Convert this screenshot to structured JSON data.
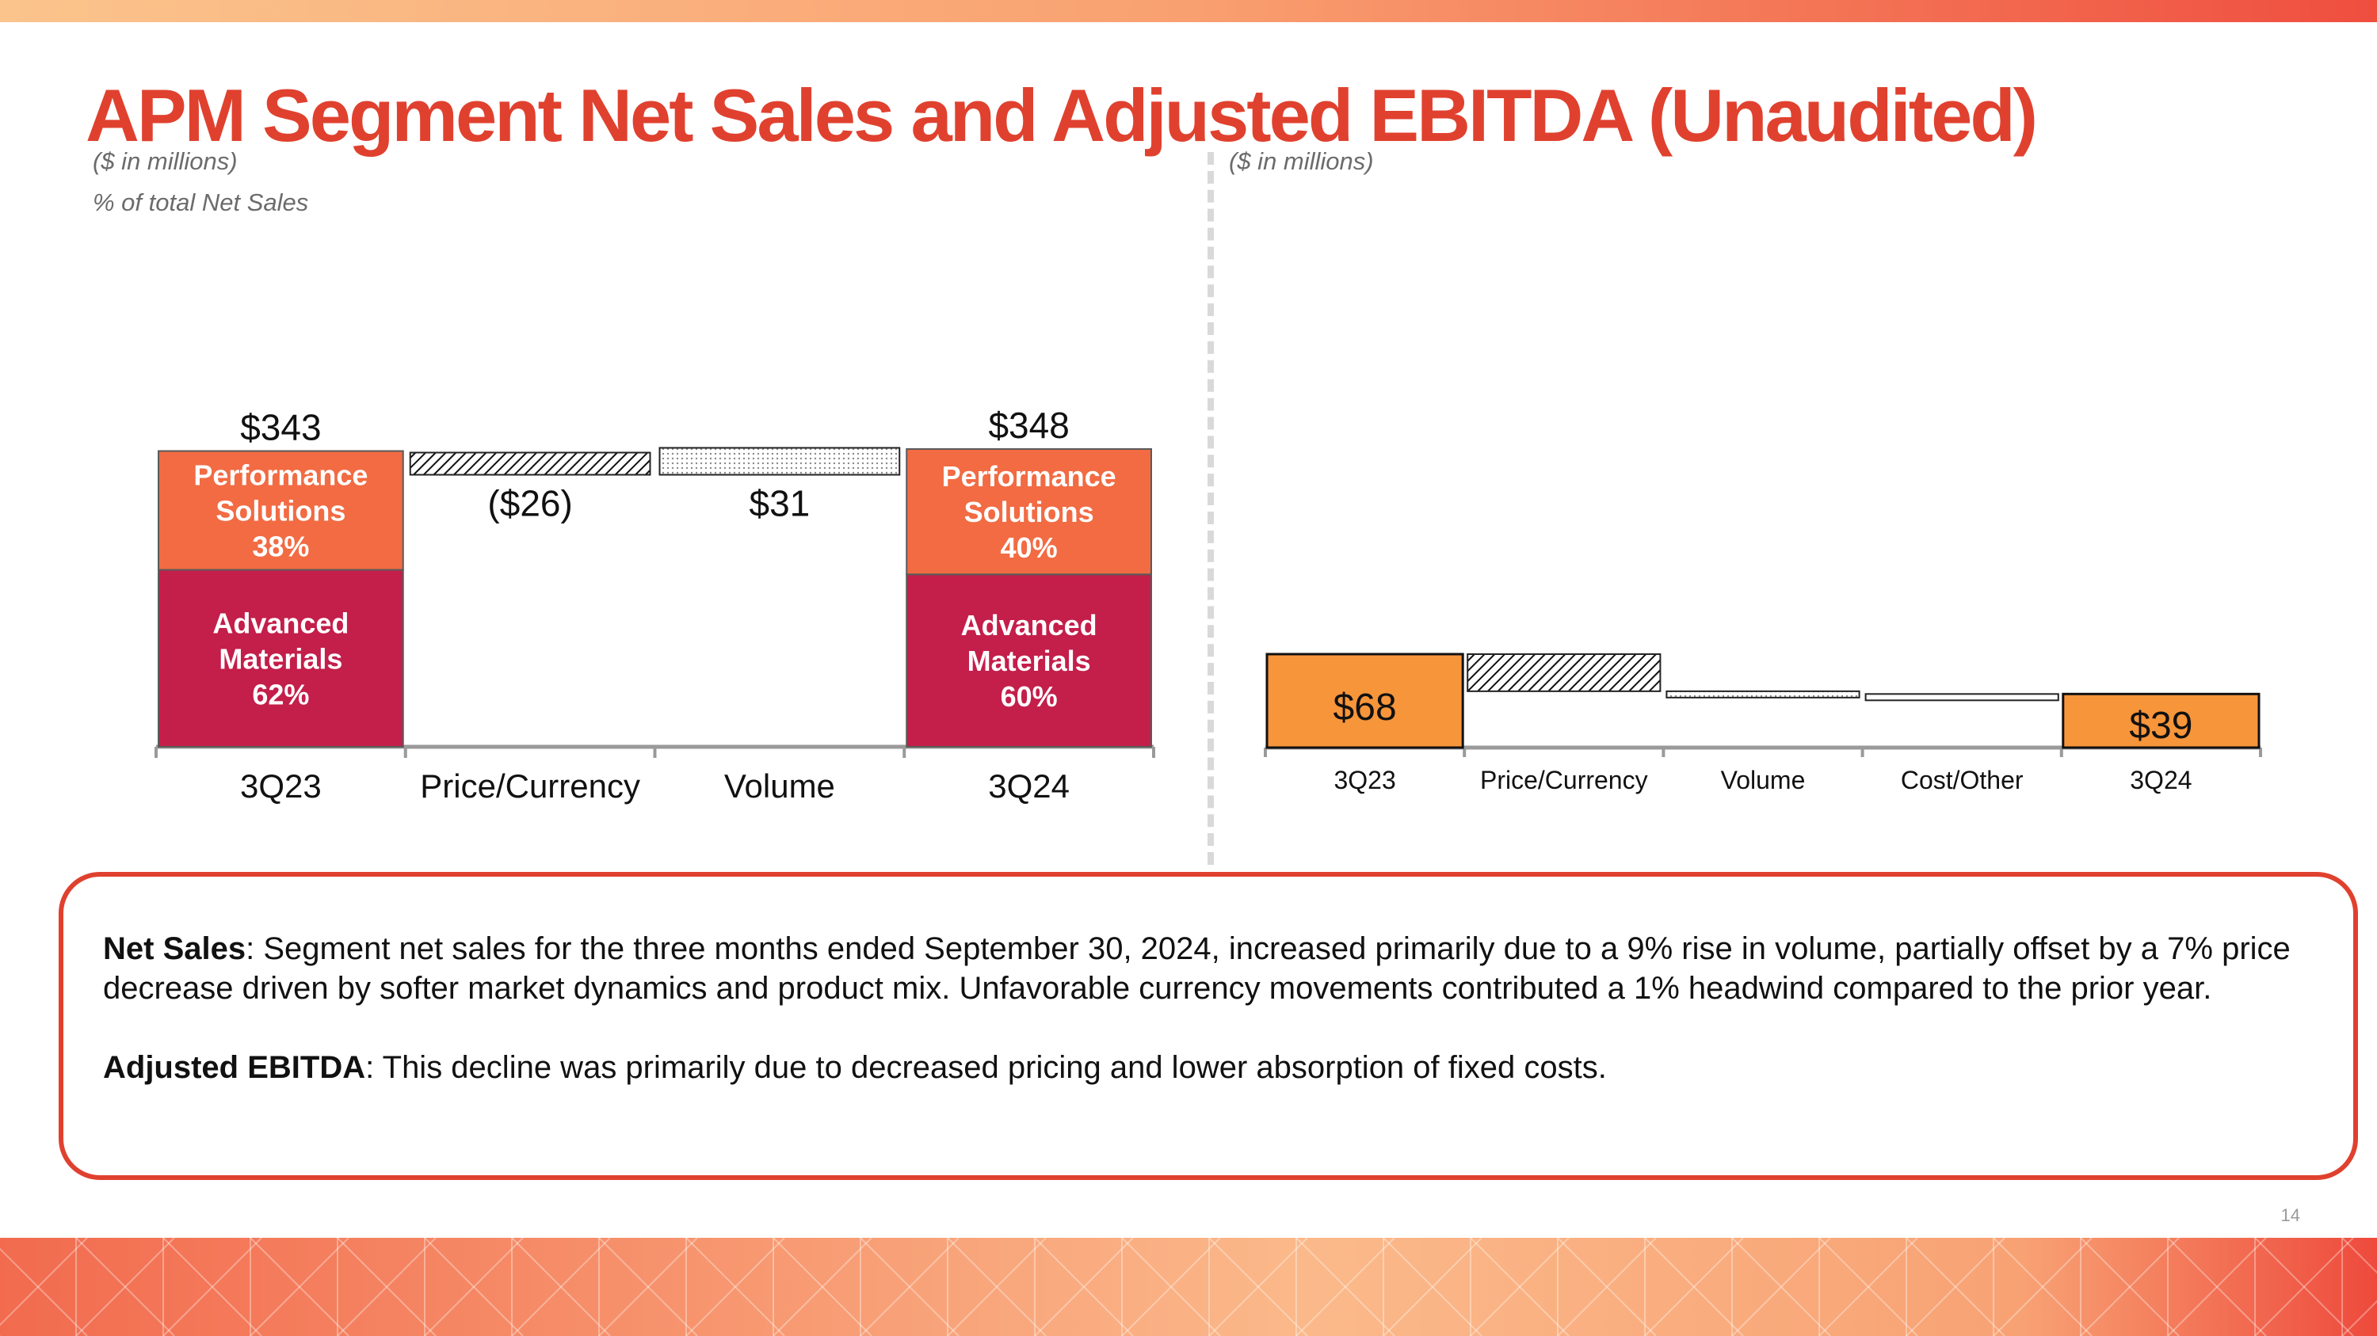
{
  "slide": {
    "title": "APM Segment Net Sales and Adjusted EBITDA (Unaudited)",
    "page_number": "14"
  },
  "left_panel": {
    "units_note": "($ in millions)",
    "share_note": "% of total Net Sales"
  },
  "right_panel": {
    "units_note": "($ in millions)"
  },
  "commentary": {
    "net_sales_label": "Net Sales",
    "net_sales_text": ": Segment net sales for the three months ended September 30, 2024, increased primarily due to a 9% rise in volume, partially offset by a 7% price decrease driven by softer market dynamics and product mix. Unfavorable currency movements contributed a 1% headwind compared to the prior year.",
    "ebitda_label": "Adjusted EBITDA",
    "ebitda_text": ": This decline was primarily due to decreased pricing and lower absorption of fixed costs."
  },
  "colors": {
    "accent": "#e0412f",
    "performance_solutions": "#f26b43",
    "advanced_materials": "#c41e4a",
    "ebitda_bar": "#f7953a"
  },
  "chart_data": [
    {
      "type": "bar",
      "subtype": "waterfall-stacked",
      "title": "APM Segment Net Sales",
      "units": "($ in millions)",
      "categories": [
        "3Q23",
        "Price/Currency",
        "Volume",
        "3Q24"
      ],
      "totals": [
        {
          "category": "3Q23",
          "value": 343,
          "label": "$343",
          "segments": [
            {
              "name": "Advanced Materials",
              "share": "62%",
              "line1": "Advanced",
              "line2": "Materials"
            },
            {
              "name": "Performance Solutions",
              "share": "38%",
              "line1": "Performance",
              "line2": "Solutions"
            }
          ]
        },
        {
          "category": "3Q24",
          "value": 348,
          "label": "$348",
          "segments": [
            {
              "name": "Advanced Materials",
              "share": "60%",
              "line1": "Advanced",
              "line2": "Materials"
            },
            {
              "name": "Performance Solutions",
              "share": "40%",
              "line1": "Performance",
              "line2": "Solutions"
            }
          ]
        }
      ],
      "changes": [
        {
          "category": "Price/Currency",
          "value": -26,
          "label": "($26)",
          "pattern": "hatch"
        },
        {
          "category": "Volume",
          "value": 31,
          "label": "$31",
          "pattern": "dots"
        }
      ],
      "axis_break": true
    },
    {
      "type": "bar",
      "subtype": "waterfall",
      "title": "APM Segment Adjusted EBITDA",
      "units": "($ in millions)",
      "categories": [
        "3Q23",
        "Price/Currency",
        "Volume",
        "Cost/Other",
        "3Q24"
      ],
      "start": {
        "category": "3Q23",
        "value": 68,
        "label": "$68"
      },
      "changes": [
        {
          "category": "Price/Currency",
          "value": -27,
          "pattern": "hatch"
        },
        {
          "category": "Volume",
          "value": -2,
          "pattern": "dots"
        },
        {
          "category": "Cost/Other",
          "value": 0,
          "pattern": "none"
        }
      ],
      "end": {
        "category": "3Q24",
        "value": 39,
        "label": "$39"
      },
      "ylim": [
        0,
        68
      ]
    }
  ]
}
